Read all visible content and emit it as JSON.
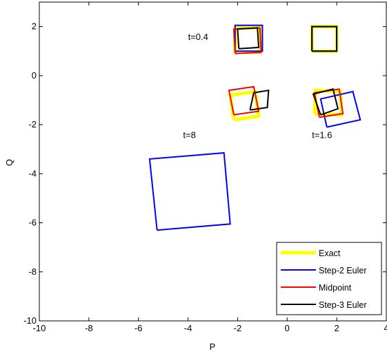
{
  "chart_data": {
    "type": "line",
    "title": "",
    "xlabel": "P",
    "ylabel": "Q",
    "xlim": [
      -10,
      4
    ],
    "ylim": [
      -10,
      3
    ],
    "xticks": [
      -10,
      -8,
      -6,
      -4,
      -2,
      0,
      2,
      4
    ],
    "yticks": [
      2,
      0,
      -2,
      -4,
      -6,
      -8,
      -10
    ],
    "grid": false,
    "legend_position": "bottom-right",
    "annotations": [
      {
        "text": "t=0.4",
        "x": -4.0,
        "y": 1.45
      },
      {
        "text": "t=8",
        "x": -4.2,
        "y": -2.55
      },
      {
        "text": "t=1.6",
        "x": 1.0,
        "y": -2.55
      }
    ],
    "series": [
      {
        "name": "Exact",
        "color": "#ffff00",
        "width": 5,
        "polygons": [
          [
            [
              1.0,
              1.0
            ],
            [
              2.0,
              1.0
            ],
            [
              2.0,
              2.0
            ],
            [
              1.0,
              2.0
            ],
            [
              1.0,
              1.0
            ]
          ],
          [
            [
              -2.1,
              0.95
            ],
            [
              -1.1,
              0.95
            ],
            [
              -1.1,
              1.95
            ],
            [
              -2.1,
              1.95
            ],
            [
              -2.1,
              0.95
            ]
          ],
          [
            [
              -2.15,
              -1.8
            ],
            [
              -1.15,
              -1.65
            ],
            [
              -1.3,
              -0.65
            ],
            [
              -2.3,
              -0.8
            ],
            [
              -2.15,
              -1.8
            ]
          ],
          [
            [
              1.1,
              -1.55
            ],
            [
              2.2,
              -1.6
            ],
            [
              2.15,
              -0.65
            ],
            [
              1.15,
              -0.6
            ],
            [
              1.1,
              -1.55
            ]
          ]
        ]
      },
      {
        "name": "Step-2 Euler",
        "color": "#0000ff",
        "width": 2,
        "polygons": [
          [
            [
              1.0,
              1.0
            ],
            [
              2.0,
              1.0
            ],
            [
              2.0,
              2.0
            ],
            [
              1.0,
              2.0
            ],
            [
              1.0,
              1.0
            ]
          ],
          [
            [
              -2.1,
              1.0
            ],
            [
              -1.0,
              1.0
            ],
            [
              -1.0,
              2.05
            ],
            [
              -2.1,
              2.05
            ],
            [
              -2.1,
              1.0
            ]
          ],
          [
            [
              1.6,
              -2.1
            ],
            [
              2.95,
              -1.8
            ],
            [
              2.65,
              -0.65
            ],
            [
              1.35,
              -0.95
            ],
            [
              1.6,
              -2.1
            ]
          ],
          [
            [
              -5.25,
              -6.3
            ],
            [
              -2.3,
              -6.05
            ],
            [
              -2.55,
              -3.15
            ],
            [
              -5.55,
              -3.4
            ],
            [
              -5.25,
              -6.3
            ]
          ]
        ]
      },
      {
        "name": "Midpoint",
        "color": "#ff0000",
        "width": 2,
        "polygons": [
          [
            [
              -2.1,
              0.9
            ],
            [
              -1.05,
              0.95
            ],
            [
              -1.1,
              1.95
            ],
            [
              -2.15,
              1.9
            ],
            [
              -2.1,
              0.9
            ]
          ],
          [
            [
              -2.15,
              -1.6
            ],
            [
              -1.15,
              -1.45
            ],
            [
              -1.35,
              -0.45
            ],
            [
              -2.35,
              -0.6
            ],
            [
              -2.15,
              -1.6
            ]
          ],
          [
            [
              1.3,
              -1.7
            ],
            [
              2.25,
              -1.55
            ],
            [
              2.1,
              -0.55
            ],
            [
              1.1,
              -0.7
            ],
            [
              1.3,
              -1.7
            ]
          ]
        ]
      },
      {
        "name": "Step-3 Euler",
        "color": "#000000",
        "width": 2,
        "polygons": [
          [
            [
              1.0,
              1.0
            ],
            [
              2.0,
              1.0
            ],
            [
              2.0,
              2.0
            ],
            [
              1.0,
              2.0
            ],
            [
              1.0,
              1.0
            ]
          ],
          [
            [
              -1.95,
              1.1
            ],
            [
              -1.15,
              1.15
            ],
            [
              -1.2,
              1.95
            ],
            [
              -2.0,
              1.9
            ],
            [
              -1.95,
              1.1
            ]
          ],
          [
            [
              -1.5,
              -1.4
            ],
            [
              -0.8,
              -1.3
            ],
            [
              -0.75,
              -0.6
            ],
            [
              -1.35,
              -0.7
            ],
            [
              -1.5,
              -1.4
            ]
          ],
          [
            [
              1.35,
              -1.6
            ],
            [
              2.05,
              -1.35
            ],
            [
              1.85,
              -0.55
            ],
            [
              1.05,
              -0.75
            ],
            [
              1.35,
              -1.6
            ]
          ]
        ]
      }
    ]
  }
}
